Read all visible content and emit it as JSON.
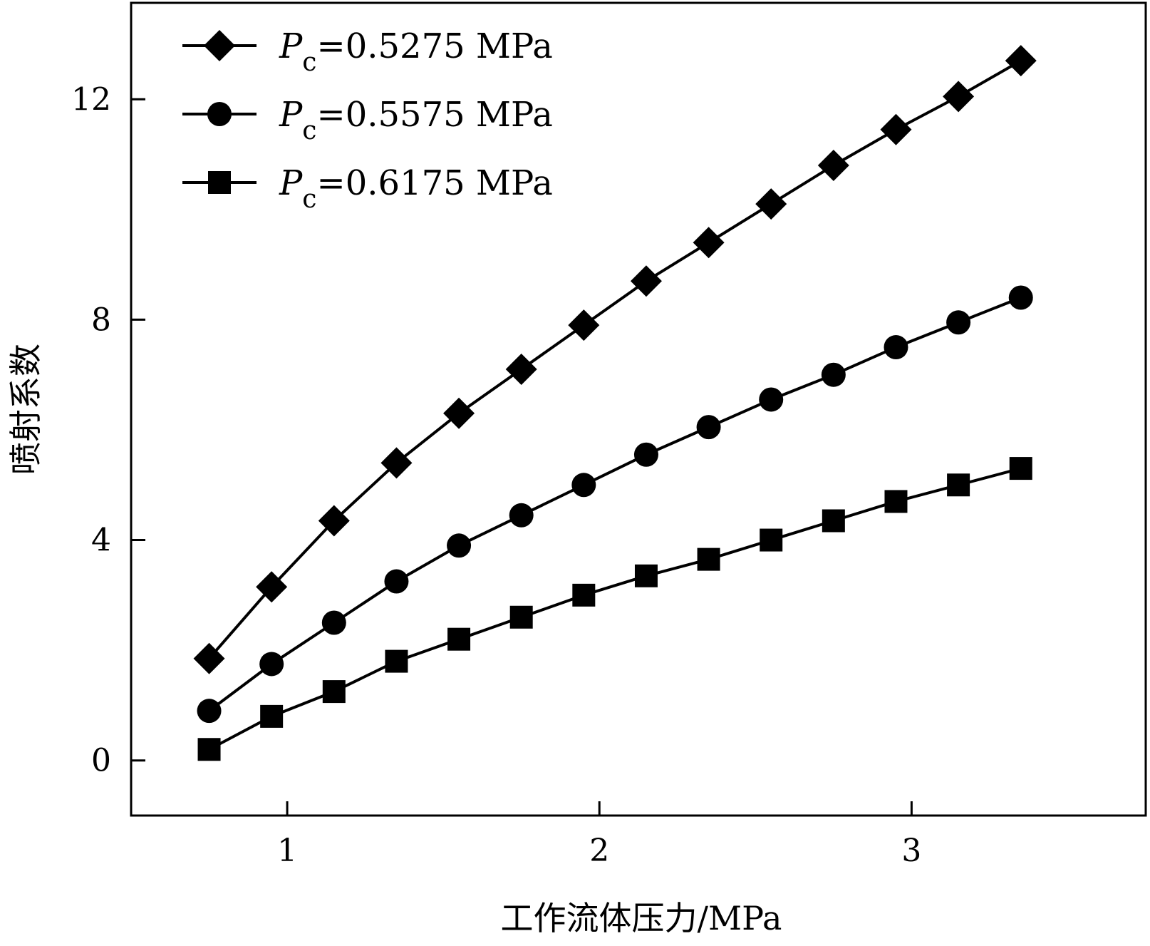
{
  "chart_data": {
    "type": "line",
    "title": "",
    "xlabel": "工作流体压力/MPa",
    "ylabel": "喷射系数",
    "xlim": [
      0.5,
      3.75
    ],
    "ylim": [
      -1,
      13.75
    ],
    "xticks": [
      1,
      2,
      3
    ],
    "yticks": [
      0,
      4,
      8,
      12
    ],
    "grid": false,
    "legend_position": "top-left",
    "x": [
      0.75,
      0.95,
      1.15,
      1.35,
      1.55,
      1.75,
      1.95,
      2.15,
      2.35,
      2.55,
      2.75,
      2.95,
      3.15,
      3.35
    ],
    "series": [
      {
        "name": "Pc=0.5275 MPa",
        "legend_symbol": "P",
        "legend_sub": "c",
        "legend_rest": "=0.5275 MPa",
        "marker": "diamond",
        "values": [
          1.85,
          3.15,
          4.35,
          5.4,
          6.3,
          7.1,
          7.9,
          8.7,
          9.4,
          10.1,
          10.8,
          11.45,
          12.05,
          12.7
        ]
      },
      {
        "name": "Pc=0.5575 MPa",
        "legend_symbol": "P",
        "legend_sub": "c",
        "legend_rest": "=0.5575 MPa",
        "marker": "circle",
        "values": [
          0.9,
          1.75,
          2.5,
          3.25,
          3.9,
          4.45,
          5.0,
          5.55,
          6.05,
          6.55,
          7.0,
          7.5,
          7.95,
          8.4
        ]
      },
      {
        "name": "Pc=0.6175 MPa",
        "legend_symbol": "P",
        "legend_sub": "c",
        "legend_rest": "=0.6175 MPa",
        "marker": "square",
        "values": [
          0.2,
          0.8,
          1.25,
          1.8,
          2.2,
          2.6,
          3.0,
          3.35,
          3.65,
          4.0,
          4.35,
          4.7,
          5.0,
          5.3
        ]
      }
    ]
  }
}
